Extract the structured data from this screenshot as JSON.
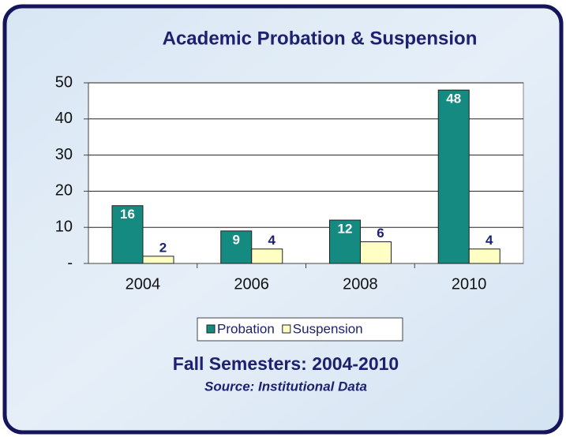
{
  "chart_data": {
    "type": "bar",
    "title": "Academic Probation & Suspension",
    "subtitle": "Fall Semesters: 2004-2010",
    "source": "Source: Institutional Data",
    "categories": [
      "2004",
      "2006",
      "2008",
      "2010"
    ],
    "series": [
      {
        "name": "Probation",
        "color": "#148a80",
        "values": [
          16,
          9,
          12,
          48
        ]
      },
      {
        "name": "Suspension",
        "color": "#ffffc4",
        "values": [
          2,
          4,
          6,
          4
        ]
      }
    ],
    "ylim": [
      0,
      50
    ],
    "yticks": [
      {
        "value": 0,
        "label": "-"
      },
      10,
      20,
      30,
      40,
      50
    ],
    "grid": true,
    "legend": "bottom"
  }
}
